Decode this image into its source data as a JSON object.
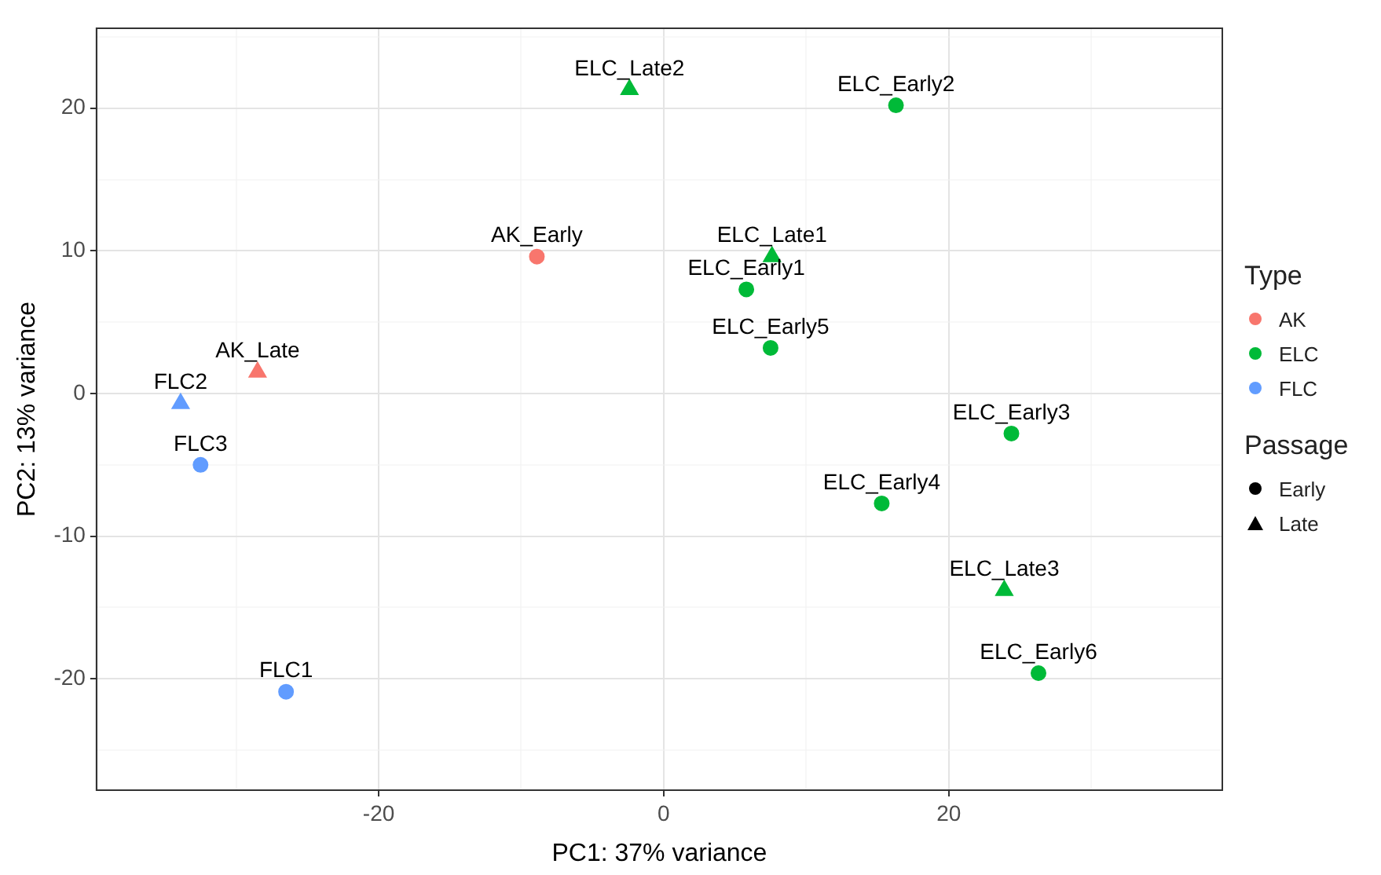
{
  "chart_data": {
    "type": "scatter",
    "xlabel": "PC1: 37% variance",
    "ylabel": "PC2: 13% variance",
    "legend_title": "Type",
    "legend": "right",
    "grid": true,
    "xlim": [
      -39.8,
      39.2
    ],
    "xticks": [
      {
        "value": -30,
        "label": null
      },
      -20,
      {
        "value": -10,
        "label": null
      },
      0,
      {
        "value": 10,
        "label": null
      },
      20,
      {
        "value": 30,
        "label": null
      }
    ],
    "ylim": [
      -27.8,
      25.6
    ],
    "yticks": [
      {
        "value": -25,
        "label": null
      },
      -20,
      {
        "value": -15,
        "label": null
      },
      -10,
      {
        "value": -5,
        "label": null
      },
      0,
      {
        "value": 5,
        "label": null
      },
      10,
      {
        "value": 15,
        "label": null
      },
      20,
      {
        "value": 25,
        "label": null
      }
    ],
    "annotations": [
      "Passage",
      "Early",
      "Late"
    ],
    "series": [
      {
        "name": "AK",
        "color": "#f8766d",
        "marker": "circle",
        "x": [
          -8.9
        ],
        "values": [
          9.6
        ],
        "value_labels": [
          "AK_Early"
        ]
      },
      {
        "color": "#f8766d",
        "marker": "triangle",
        "x": [
          -28.5
        ],
        "values": [
          1.5
        ],
        "value_labels": [
          "AK_Late"
        ]
      },
      {
        "name": "ELC",
        "color": "#00ba38",
        "marker": "circle",
        "x": [
          5.8,
          16.3,
          24.4,
          15.3,
          7.5,
          26.3
        ],
        "values": [
          7.3,
          20.2,
          -2.8,
          -7.7,
          3.2,
          -19.6
        ],
        "value_labels": [
          "ELC_Early1",
          "ELC_Early2",
          "ELC_Early3",
          "ELC_Early4",
          "ELC_Early5",
          "ELC_Early6"
        ]
      },
      {
        "color": "#00ba38",
        "marker": "triangle",
        "x": [
          7.6,
          -2.4,
          23.9
        ],
        "values": [
          9.6,
          21.3,
          -13.8
        ],
        "value_labels": [
          "ELC_Late1",
          "ELC_Late2",
          "ELC_Late3"
        ]
      },
      {
        "name": "FLC",
        "color": "#619cff",
        "marker": "circle",
        "x": [
          -26.5,
          -32.5
        ],
        "values": [
          -20.9,
          -5.0
        ],
        "value_labels": [
          "FLC1",
          "FLC3"
        ]
      },
      {
        "color": "#619cff",
        "marker": "triangle",
        "x": [
          -33.9
        ],
        "values": [
          -0.7
        ],
        "value_labels": [
          "FLC2"
        ]
      }
    ]
  }
}
